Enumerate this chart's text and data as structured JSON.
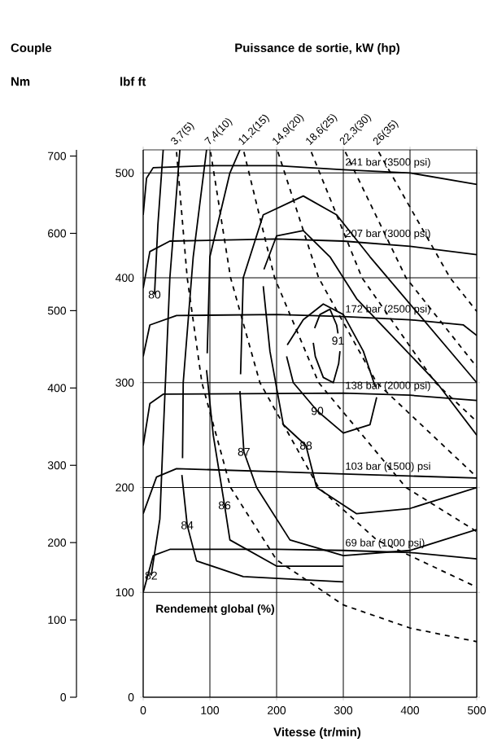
{
  "chart_data": {
    "type": "line",
    "title": "Puissance de sortie, kW (hp)",
    "xlabel": "Vitesse (tr/min)",
    "xlim": [
      0,
      500
    ],
    "ylim": [
      0,
      522
    ],
    "y2lim": [
      0,
      708
    ],
    "xticks": [
      0,
      100,
      200,
      300,
      400,
      500
    ],
    "yticks": [
      0,
      100,
      200,
      300,
      400,
      500
    ],
    "y2ticks": [
      0,
      100,
      200,
      300,
      400,
      500,
      600,
      700
    ],
    "grid": true,
    "annotations": [
      "Couple",
      "Rendement global (%)",
      "Nm",
      "lbf ft",
      {
        "text": "80",
        "x": 17,
        "y": 384
      },
      {
        "text": "82",
        "x": 12,
        "y": 116
      },
      {
        "text": "84",
        "x": 66,
        "y": 164
      },
      {
        "text": "86",
        "x": 122,
        "y": 183
      },
      {
        "text": "87",
        "x": 151,
        "y": 234
      },
      {
        "text": "88",
        "x": 244,
        "y": 240
      },
      {
        "text": "90",
        "x": 261,
        "y": 273
      },
      {
        "text": "91",
        "x": 292,
        "y": 340
      }
    ],
    "series": [
      {
        "name": "241 bar (3500 psi)",
        "color": "#000000",
        "line_style": "solid",
        "x": [
          0,
          5,
          15,
          100,
          200,
          300,
          400,
          500
        ],
        "values": [
          460,
          495,
          505,
          507,
          507,
          503,
          500,
          489
        ]
      },
      {
        "name": "207 bar (3000 psi)",
        "color": "#000000",
        "line_style": "solid",
        "x": [
          0,
          10,
          40,
          200,
          300,
          400,
          500
        ],
        "values": [
          390,
          425,
          435,
          437,
          435,
          430,
          422
        ]
      },
      {
        "name": "172 bar (2500 psi)",
        "color": "#000000",
        "line_style": "solid",
        "x": [
          0,
          10,
          50,
          200,
          300,
          400,
          480,
          500
        ],
        "values": [
          325,
          355,
          364,
          365,
          363,
          360,
          355,
          345
        ]
      },
      {
        "name": "138 bar (2000 psi)",
        "color": "#000000",
        "line_style": "solid",
        "x": [
          0,
          10,
          30,
          300,
          400,
          500
        ],
        "values": [
          240,
          280,
          289,
          290,
          288,
          283
        ]
      },
      {
        "name": "103 bar (1500) psi",
        "color": "#000000",
        "line_style": "solid",
        "x": [
          0,
          20,
          50,
          200,
          300,
          400,
          500
        ],
        "values": [
          175,
          210,
          218,
          215,
          213,
          211,
          209
        ]
      },
      {
        "name": "69 bar (1000 psi)",
        "color": "#000000",
        "line_style": "solid",
        "x": [
          0,
          15,
          40,
          200,
          300,
          400,
          500
        ],
        "values": [
          100,
          135,
          141,
          141,
          140,
          138,
          132
        ]
      },
      {
        "name": "3,7(5)",
        "color": "#000000",
        "line_style": "dashed",
        "x": [
          50,
          66,
          88,
          131,
          200,
          300,
          400,
          500
        ],
        "values": [
          520,
          400,
          300,
          200,
          131,
          88,
          66,
          53
        ]
      },
      {
        "name": "7,4(10)",
        "color": "#000000",
        "line_style": "dashed",
        "x": [
          101,
          131,
          175,
          263,
          350,
          500
        ],
        "values": [
          520,
          400,
          300,
          200,
          150,
          105
        ]
      },
      {
        "name": "11,2(15)",
        "color": "#000000",
        "line_style": "dashed",
        "x": [
          151,
          197,
          263,
          394,
          500
        ],
        "values": [
          520,
          400,
          300,
          200,
          158
        ]
      },
      {
        "name": "14,9(20)",
        "color": "#000000",
        "line_style": "dashed",
        "x": [
          202,
          263,
          350,
          500
        ],
        "values": [
          520,
          400,
          300,
          210
        ]
      },
      {
        "name": "18,6(25)",
        "color": "#000000",
        "line_style": "dashed",
        "x": [
          252,
          328,
          438,
          500
        ],
        "values": [
          520,
          400,
          300,
          263
        ]
      },
      {
        "name": "22,3(30)",
        "color": "#000000",
        "line_style": "dashed",
        "x": [
          303,
          394,
          500
        ],
        "values": [
          520,
          400,
          315
        ]
      },
      {
        "name": "26(35)",
        "color": "#000000",
        "line_style": "dashed",
        "x": [
          353,
          460,
          500
        ],
        "values": [
          520,
          400,
          368
        ]
      },
      {
        "color": "#000000",
        "line_style": "solid",
        "x": [
          257,
          265,
          280,
          290,
          292
        ],
        "values": [
          352,
          365,
          370,
          355,
          347
        ]
      },
      {
        "color": "#000000",
        "line_style": "solid",
        "x": [
          255,
          258,
          270,
          285,
          293,
          295
        ],
        "values": [
          338,
          325,
          305,
          300,
          318,
          330
        ]
      },
      {
        "color": "#000000",
        "line_style": "solid",
        "x": [
          216,
          240,
          270,
          300,
          330,
          348
        ],
        "values": [
          336,
          360,
          375,
          365,
          330,
          296
        ]
      },
      {
        "color": "#000000",
        "line_style": "solid",
        "x": [
          215,
          225,
          261,
          300,
          340,
          350
        ],
        "values": [
          325,
          300,
          273,
          252,
          260,
          286
        ]
      },
      {
        "color": "#000000",
        "line_style": "solid",
        "x": [
          180,
          190,
          210,
          244,
          260,
          320,
          400,
          500
        ],
        "values": [
          392,
          330,
          260,
          240,
          200,
          175,
          180,
          200
        ]
      },
      {
        "color": "#000000",
        "line_style": "solid",
        "x": [
          181,
          200,
          240,
          280,
          320,
          380,
          440,
          500
        ],
        "values": [
          408,
          440,
          445,
          420,
          380,
          340,
          300,
          250
        ]
      },
      {
        "color": "#000000",
        "line_style": "solid",
        "x": [
          145,
          151,
          170,
          220,
          300,
          400,
          500
        ],
        "values": [
          292,
          234,
          200,
          150,
          135,
          140,
          160
        ]
      },
      {
        "color": "#000000",
        "line_style": "solid",
        "x": [
          146,
          150,
          180,
          240,
          290,
          340,
          420,
          500
        ],
        "values": [
          308,
          400,
          460,
          478,
          460,
          420,
          360,
          300
        ]
      },
      {
        "color": "#000000",
        "line_style": "solid",
        "x": [
          95,
          105,
          122,
          130,
          200,
          300
        ],
        "values": [
          312,
          250,
          183,
          150,
          125,
          125
        ]
      },
      {
        "color": "#000000",
        "line_style": "solid",
        "x": [
          96,
          100,
          130,
          145
        ],
        "values": [
          328,
          420,
          500,
          522
        ]
      },
      {
        "color": "#000000",
        "line_style": "solid",
        "x": [
          58,
          66,
          80,
          150,
          300
        ],
        "values": [
          212,
          164,
          130,
          115,
          110
        ]
      },
      {
        "color": "#000000",
        "line_style": "solid",
        "x": [
          59,
          60,
          75,
          95
        ],
        "values": [
          228,
          300,
          420,
          522
        ]
      },
      {
        "color": "#000000",
        "line_style": "solid",
        "x": [
          12,
          25,
          30,
          40,
          55
        ],
        "values": [
          116,
          170,
          250,
          400,
          522
        ]
      },
      {
        "color": "#000000",
        "line_style": "solid",
        "x": [
          17,
          22,
          30
        ],
        "values": [
          384,
          450,
          522
        ]
      }
    ]
  }
}
